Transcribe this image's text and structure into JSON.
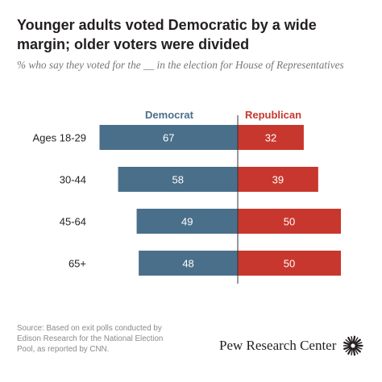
{
  "header": {
    "title": "Younger adults voted Democratic by a wide margin; older voters were divided",
    "subtitle": "% who say they voted for the __ in the election for House of Representatives"
  },
  "chart_data": {
    "type": "bar",
    "orientation": "horizontal-diverging",
    "categories": [
      "Ages 18-29",
      "30-44",
      "45-64",
      "65+"
    ],
    "series": [
      {
        "name": "Democrat",
        "values": [
          67,
          58,
          49,
          48
        ],
        "color": "#4a6f8a"
      },
      {
        "name": "Republican",
        "values": [
          32,
          39,
          50,
          50
        ],
        "color": "#c8372d"
      }
    ],
    "legend_placement": "top",
    "grid": false
  },
  "footer": {
    "source": "Source: Based on exit polls conducted by Edison Research for the National Election Pool, as reported by CNN.",
    "brand": "Pew Research Center",
    "logo_icon": "pew-sunburst-icon"
  }
}
